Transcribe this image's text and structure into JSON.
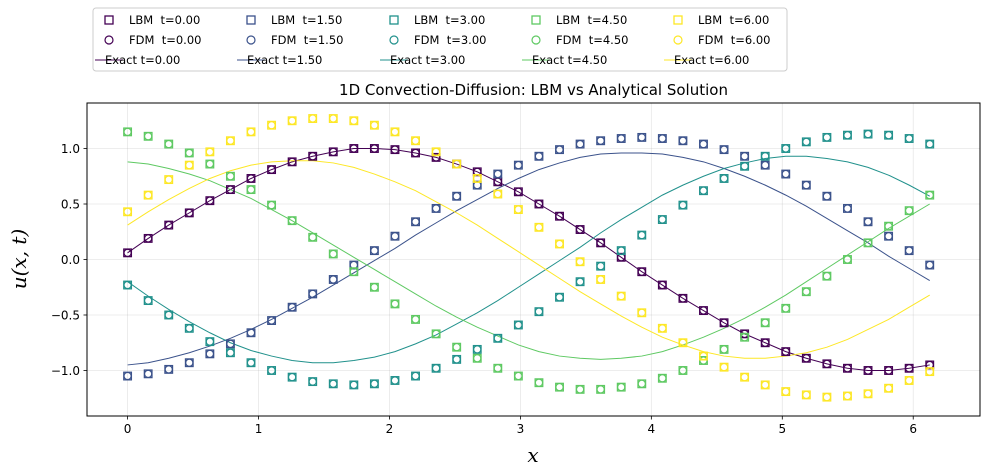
{
  "chart_data": {
    "type": "line+scatter",
    "title": "1D Convection-Diffusion: LBM vs Analytical Solution",
    "xlabel": "x",
    "ylabel": "u(x, t)",
    "xlim": [
      -0.31,
      6.51
    ],
    "ylim": [
      -1.41,
      1.41
    ],
    "xticks": [
      0,
      1,
      2,
      3,
      4,
      5,
      6
    ],
    "yticks": [
      -1.0,
      -0.5,
      0.0,
      0.5,
      1.0
    ],
    "x_values": [
      0.0,
      0.1571,
      0.3142,
      0.4712,
      0.6283,
      0.7854,
      0.9425,
      1.0996,
      1.2566,
      1.4137,
      1.5708,
      1.7279,
      1.885,
      2.042,
      2.1991,
      2.3562,
      2.5133,
      2.6704,
      2.8274,
      2.9845,
      3.1416,
      3.2987,
      3.4558,
      3.6128,
      3.7699,
      3.927,
      4.0841,
      4.2412,
      4.3982,
      4.5553,
      4.7124,
      4.8695,
      5.0265,
      5.1836,
      5.3407,
      5.4978,
      5.6549,
      5.8119,
      5.969,
      6.1261
    ],
    "grid": true,
    "legend_location": "top, above plot",
    "series": [
      {
        "name": "LBM  t=0.00",
        "kind": "lbm",
        "marker": "square",
        "color": "#440154",
        "values": [
          0.06,
          0.19,
          0.31,
          0.42,
          0.53,
          0.63,
          0.73,
          0.81,
          0.88,
          0.93,
          0.97,
          1.0,
          1.0,
          0.99,
          0.96,
          0.92,
          0.86,
          0.79,
          0.7,
          0.61,
          0.5,
          0.39,
          0.27,
          0.15,
          0.02,
          -0.11,
          -0.23,
          -0.35,
          -0.46,
          -0.57,
          -0.67,
          -0.75,
          -0.83,
          -0.89,
          -0.94,
          -0.98,
          -1.0,
          -1.0,
          -0.98,
          -0.95
        ]
      },
      {
        "name": "FDM  t=0.00",
        "kind": "fdm",
        "marker": "circle",
        "color": "#440154",
        "values": [
          0.06,
          0.19,
          0.31,
          0.42,
          0.53,
          0.63,
          0.73,
          0.81,
          0.88,
          0.93,
          0.97,
          1.0,
          1.0,
          0.99,
          0.96,
          0.92,
          0.86,
          0.79,
          0.7,
          0.61,
          0.5,
          0.39,
          0.27,
          0.15,
          0.02,
          -0.11,
          -0.23,
          -0.35,
          -0.46,
          -0.57,
          -0.67,
          -0.75,
          -0.83,
          -0.89,
          -0.94,
          -0.98,
          -1.0,
          -1.0,
          -0.98,
          -0.95
        ]
      },
      {
        "name": "Exact t=0.00",
        "kind": "exact",
        "color": "#440154",
        "values": [
          0.06,
          0.19,
          0.31,
          0.42,
          0.53,
          0.63,
          0.73,
          0.81,
          0.88,
          0.93,
          0.97,
          1.0,
          1.0,
          0.99,
          0.96,
          0.92,
          0.86,
          0.79,
          0.7,
          0.61,
          0.5,
          0.39,
          0.27,
          0.15,
          0.02,
          -0.11,
          -0.23,
          -0.35,
          -0.46,
          -0.57,
          -0.67,
          -0.75,
          -0.83,
          -0.89,
          -0.94,
          -0.98,
          -1.0,
          -1.0,
          -0.98,
          -0.95
        ]
      },
      {
        "name": "LBM  t=1.50",
        "kind": "lbm",
        "marker": "square",
        "color": "#3b528b",
        "values": [
          -1.05,
          -1.03,
          -0.99,
          -0.93,
          -0.85,
          -0.76,
          -0.66,
          -0.55,
          -0.43,
          -0.31,
          -0.18,
          -0.05,
          0.08,
          0.21,
          0.34,
          0.46,
          0.57,
          0.67,
          0.77,
          0.85,
          0.93,
          0.99,
          1.04,
          1.07,
          1.09,
          1.1,
          1.09,
          1.07,
          1.04,
          0.99,
          0.93,
          0.85,
          0.77,
          0.67,
          0.57,
          0.46,
          0.34,
          0.21,
          0.08,
          -0.05
        ]
      },
      {
        "name": "FDM  t=1.50",
        "kind": "fdm",
        "marker": "circle",
        "color": "#3b528b",
        "values": [
          -1.05,
          -1.03,
          -0.99,
          -0.93,
          -0.85,
          -0.76,
          -0.66,
          -0.55,
          -0.43,
          -0.31,
          -0.18,
          -0.05,
          0.08,
          0.21,
          0.34,
          0.46,
          0.57,
          0.67,
          0.77,
          0.85,
          0.93,
          0.99,
          1.04,
          1.07,
          1.09,
          1.1,
          1.09,
          1.07,
          1.04,
          0.99,
          0.93,
          0.85,
          0.77,
          0.67,
          0.57,
          0.46,
          0.34,
          0.21,
          0.08,
          -0.05
        ]
      },
      {
        "name": "Exact t=1.50",
        "kind": "exact",
        "color": "#3b528b",
        "values": [
          -0.95,
          -0.93,
          -0.89,
          -0.84,
          -0.78,
          -0.71,
          -0.63,
          -0.54,
          -0.44,
          -0.34,
          -0.23,
          -0.12,
          -0.01,
          0.1,
          0.22,
          0.33,
          0.44,
          0.54,
          0.64,
          0.73,
          0.81,
          0.87,
          0.92,
          0.95,
          0.96,
          0.96,
          0.95,
          0.92,
          0.88,
          0.82,
          0.75,
          0.67,
          0.58,
          0.48,
          0.37,
          0.26,
          0.15,
          0.03,
          -0.08,
          -0.19
        ]
      },
      {
        "name": "LBM  t=3.00",
        "kind": "lbm",
        "marker": "square",
        "color": "#21918c",
        "values": [
          -0.23,
          -0.37,
          -0.5,
          -0.62,
          -0.74,
          -0.84,
          -0.93,
          -1.0,
          -1.06,
          -1.1,
          -1.12,
          -1.13,
          -1.12,
          -1.09,
          -1.05,
          -0.98,
          -0.9,
          -0.81,
          -0.71,
          -0.59,
          -0.47,
          -0.34,
          -0.2,
          -0.06,
          0.08,
          0.22,
          0.36,
          0.49,
          0.62,
          0.73,
          0.84,
          0.93,
          1.0,
          1.06,
          1.1,
          1.12,
          1.13,
          1.12,
          1.09,
          1.04
        ]
      },
      {
        "name": "FDM  t=3.00",
        "kind": "fdm",
        "marker": "circle",
        "color": "#21918c",
        "values": [
          -0.23,
          -0.37,
          -0.5,
          -0.62,
          -0.74,
          -0.84,
          -0.93,
          -1.0,
          -1.06,
          -1.1,
          -1.12,
          -1.13,
          -1.12,
          -1.09,
          -1.05,
          -0.98,
          -0.9,
          -0.81,
          -0.71,
          -0.59,
          -0.47,
          -0.34,
          -0.2,
          -0.06,
          0.08,
          0.22,
          0.36,
          0.49,
          0.62,
          0.73,
          0.84,
          0.93,
          1.0,
          1.06,
          1.1,
          1.12,
          1.13,
          1.12,
          1.09,
          1.04
        ]
      },
      {
        "name": "Exact t=3.00",
        "kind": "exact",
        "color": "#21918c",
        "values": [
          -0.2,
          -0.33,
          -0.45,
          -0.56,
          -0.66,
          -0.75,
          -0.82,
          -0.87,
          -0.91,
          -0.93,
          -0.93,
          -0.91,
          -0.88,
          -0.83,
          -0.76,
          -0.68,
          -0.58,
          -0.48,
          -0.37,
          -0.25,
          -0.13,
          -0.01,
          0.11,
          0.24,
          0.36,
          0.47,
          0.58,
          0.67,
          0.75,
          0.82,
          0.87,
          0.91,
          0.93,
          0.93,
          0.91,
          0.88,
          0.83,
          0.76,
          0.67,
          0.57
        ]
      },
      {
        "name": "LBM  t=4.50",
        "kind": "lbm",
        "marker": "square",
        "color": "#5ec962",
        "values": [
          1.15,
          1.11,
          1.04,
          0.96,
          0.86,
          0.75,
          0.63,
          0.49,
          0.35,
          0.2,
          0.05,
          -0.11,
          -0.25,
          -0.4,
          -0.54,
          -0.67,
          -0.79,
          -0.89,
          -0.98,
          -1.05,
          -1.11,
          -1.15,
          -1.17,
          -1.17,
          -1.15,
          -1.12,
          -1.07,
          -1.0,
          -0.91,
          -0.81,
          -0.7,
          -0.57,
          -0.44,
          -0.29,
          -0.15,
          0.0,
          0.15,
          0.3,
          0.44,
          0.58
        ]
      },
      {
        "name": "FDM  t=4.50",
        "kind": "fdm",
        "marker": "circle",
        "color": "#5ec962",
        "values": [
          1.15,
          1.11,
          1.04,
          0.96,
          0.86,
          0.75,
          0.63,
          0.49,
          0.35,
          0.2,
          0.05,
          -0.11,
          -0.25,
          -0.4,
          -0.54,
          -0.67,
          -0.79,
          -0.89,
          -0.98,
          -1.05,
          -1.11,
          -1.15,
          -1.17,
          -1.17,
          -1.15,
          -1.12,
          -1.07,
          -1.0,
          -0.91,
          -0.81,
          -0.7,
          -0.57,
          -0.44,
          -0.29,
          -0.15,
          0.0,
          0.15,
          0.3,
          0.44,
          0.58
        ]
      },
      {
        "name": "Exact t=4.50",
        "kind": "exact",
        "color": "#5ec962",
        "values": [
          0.88,
          0.86,
          0.82,
          0.77,
          0.71,
          0.63,
          0.55,
          0.45,
          0.35,
          0.24,
          0.13,
          0.02,
          -0.09,
          -0.2,
          -0.31,
          -0.42,
          -0.52,
          -0.61,
          -0.69,
          -0.77,
          -0.83,
          -0.87,
          -0.89,
          -0.9,
          -0.89,
          -0.87,
          -0.83,
          -0.77,
          -0.7,
          -0.62,
          -0.53,
          -0.43,
          -0.32,
          -0.2,
          -0.08,
          0.04,
          0.16,
          0.28,
          0.39,
          0.5
        ]
      },
      {
        "name": "LBM  t=6.00",
        "kind": "lbm",
        "marker": "square",
        "color": "#fde725",
        "values": [
          0.43,
          0.58,
          0.72,
          0.85,
          0.97,
          1.07,
          1.15,
          1.21,
          1.25,
          1.27,
          1.27,
          1.25,
          1.21,
          1.15,
          1.07,
          0.97,
          0.86,
          0.73,
          0.59,
          0.45,
          0.29,
          0.14,
          -0.02,
          -0.18,
          -0.33,
          -0.48,
          -0.62,
          -0.75,
          -0.87,
          -0.97,
          -1.06,
          -1.13,
          -1.19,
          -1.22,
          -1.24,
          -1.23,
          -1.21,
          -1.16,
          -1.09,
          -1.01
        ]
      },
      {
        "name": "FDM  t=6.00",
        "kind": "fdm",
        "marker": "circle",
        "color": "#fde725",
        "values": [
          0.43,
          0.58,
          0.72,
          0.85,
          0.97,
          1.07,
          1.15,
          1.21,
          1.25,
          1.27,
          1.27,
          1.25,
          1.21,
          1.15,
          1.07,
          0.97,
          0.86,
          0.73,
          0.59,
          0.45,
          0.29,
          0.14,
          -0.02,
          -0.18,
          -0.33,
          -0.48,
          -0.62,
          -0.75,
          -0.87,
          -0.97,
          -1.06,
          -1.13,
          -1.19,
          -1.22,
          -1.24,
          -1.23,
          -1.21,
          -1.16,
          -1.09,
          -1.01
        ]
      },
      {
        "name": "Exact t=6.00",
        "kind": "exact",
        "color": "#fde725",
        "values": [
          0.31,
          0.43,
          0.54,
          0.64,
          0.73,
          0.8,
          0.85,
          0.88,
          0.89,
          0.89,
          0.87,
          0.83,
          0.77,
          0.7,
          0.62,
          0.52,
          0.42,
          0.31,
          0.19,
          0.07,
          -0.05,
          -0.17,
          -0.29,
          -0.4,
          -0.51,
          -0.61,
          -0.7,
          -0.77,
          -0.83,
          -0.87,
          -0.89,
          -0.89,
          -0.87,
          -0.84,
          -0.79,
          -0.72,
          -0.63,
          -0.54,
          -0.43,
          -0.32
        ]
      }
    ]
  }
}
